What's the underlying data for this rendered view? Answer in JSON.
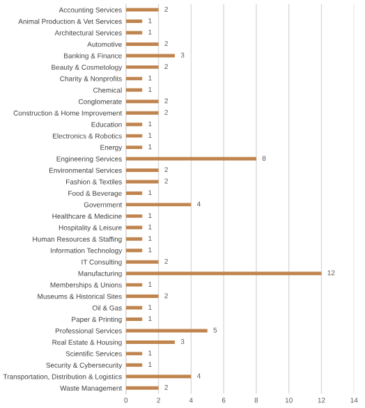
{
  "chart_data": {
    "type": "bar",
    "orientation": "horizontal",
    "categories": [
      "Accounting Services",
      "Animal Production & Vet Services",
      "Architectural Services",
      "Automotive",
      "Banking & Finance",
      "Beauty & Cosmetology",
      "Charity & Nonprofits",
      "Chemical",
      "Conglomerate",
      "Construction & Home Improvement",
      "Education",
      "Electronics & Robotics",
      "Energy",
      "Engineering Services",
      "Environmental Services",
      "Fashion & Textiles",
      "Food & Beverage",
      "Government",
      "Healthcare & Medicine",
      "Hospitality & Leisure",
      "Human Resources & Staffing",
      "Information Technology",
      "IT Consulting",
      "Manufacturing",
      "Memberships & Unions",
      "Museums & Historical Sites",
      "Oil & Gas",
      "Paper & Printing",
      "Professional Services",
      "Real Estate & Housing",
      "Scientific Services",
      "Security & Cybersecurity",
      "Transportation, Distribution & Logistics",
      "Waste Management"
    ],
    "values": [
      2,
      1,
      1,
      2,
      3,
      2,
      1,
      1,
      2,
      2,
      1,
      1,
      1,
      8,
      2,
      2,
      1,
      4,
      1,
      1,
      1,
      1,
      2,
      12,
      1,
      2,
      1,
      1,
      5,
      3,
      1,
      1,
      4,
      2
    ],
    "color": "#c0854f",
    "xlim": [
      0,
      14
    ],
    "xticks": [
      0,
      2,
      4,
      6,
      8,
      10,
      12,
      14
    ],
    "grid": "x",
    "data_labels": true,
    "legend": false
  }
}
